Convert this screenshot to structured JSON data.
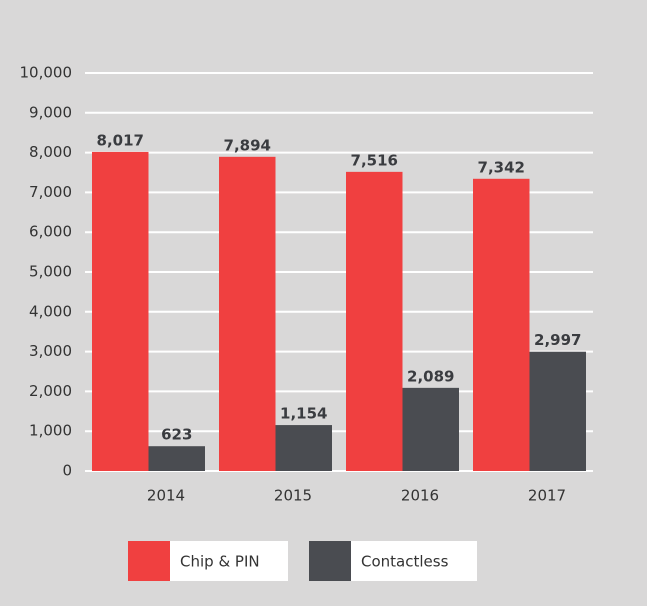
{
  "chart_data": {
    "type": "bar",
    "categories": [
      "2014",
      "2015",
      "2016",
      "2017"
    ],
    "series": [
      {
        "name": "Chip & PIN",
        "color": "#f04040",
        "values": [
          8017,
          7894,
          7516,
          7342
        ],
        "value_labels": [
          "8,017",
          "7,894",
          "7,516",
          "7,342"
        ]
      },
      {
        "name": "Contactless",
        "color": "#4a4c51",
        "values": [
          623,
          1154,
          2089,
          2997
        ],
        "value_labels": [
          "623",
          "1,154",
          "2,089",
          "2,997"
        ]
      }
    ],
    "ylim": [
      0,
      10000
    ],
    "yticks": [
      0,
      {
        "value": 1000,
        "label": "1,000"
      },
      {
        "value": 2000,
        "label": "2,000"
      },
      {
        "value": 3000,
        "label": "3,000"
      },
      {
        "value": 4000,
        "label": "4,000"
      },
      {
        "value": 5000,
        "label": "5,000"
      },
      {
        "value": 6000,
        "label": "6,000"
      },
      {
        "value": 7000,
        "label": "7,000"
      },
      {
        "value": 8000,
        "label": "8,000"
      },
      {
        "value": 9000,
        "label": "9,000"
      },
      {
        "value": 10000,
        "label": "10,000"
      }
    ],
    "grid": true,
    "legend": "bottom"
  }
}
